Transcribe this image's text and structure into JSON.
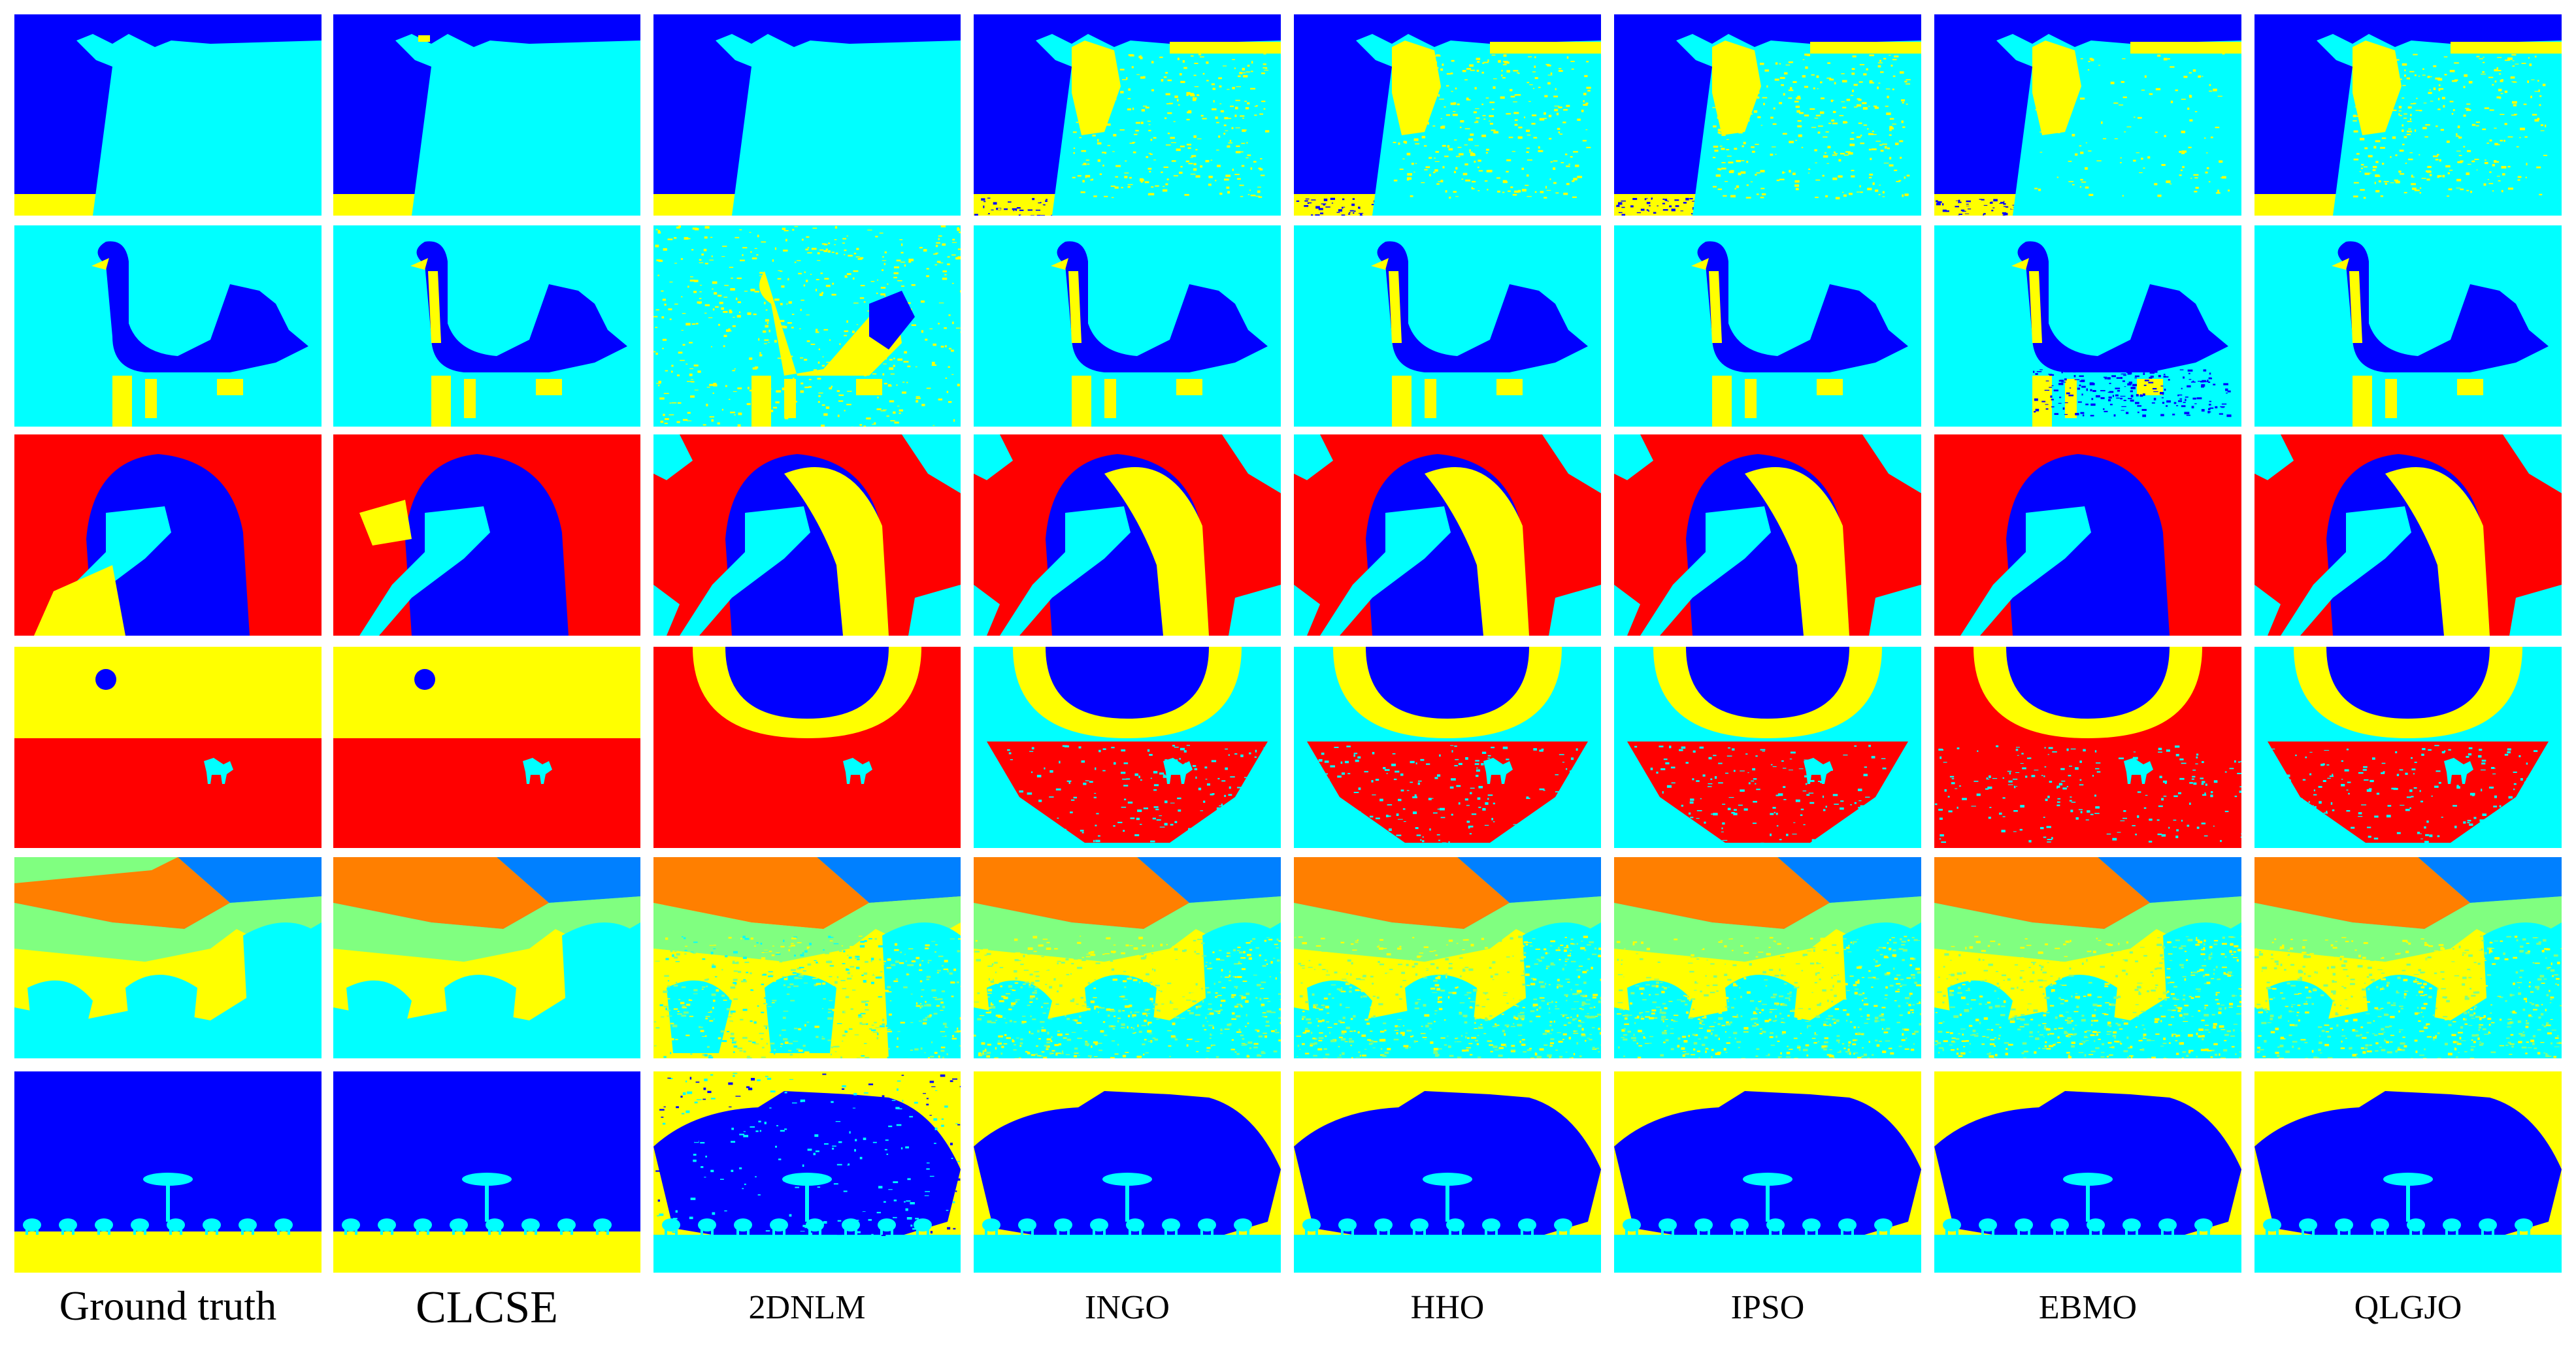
{
  "figure": {
    "columns": [
      {
        "id": "ground-truth",
        "label": "Ground truth"
      },
      {
        "id": "clcse",
        "label": "CLCSE"
      },
      {
        "id": "2dnlm",
        "label": "2DNLM"
      },
      {
        "id": "ingo",
        "label": "INGO"
      },
      {
        "id": "hho",
        "label": "HHO"
      },
      {
        "id": "ipso",
        "label": "IPSO"
      },
      {
        "id": "ebmo",
        "label": "EBMO"
      },
      {
        "id": "qlgjo",
        "label": "QLGJO"
      }
    ],
    "rows": [
      {
        "id": "cow",
        "subject": "cow"
      },
      {
        "id": "swan",
        "subject": "black swan on water"
      },
      {
        "id": "bird-head",
        "subject": "bird head"
      },
      {
        "id": "sunset-camel",
        "subject": "sun over desert with camel"
      },
      {
        "id": "mountain",
        "subject": "mountain landscape"
      },
      {
        "id": "savanna",
        "subject": "savanna tree with elephants"
      }
    ],
    "palette": {
      "blue": "#0000ff",
      "cyan": "#00ffff",
      "yellow": "#ffff00",
      "red": "#ff0000",
      "orange": "#ff7f00",
      "light-green": "#80ff80",
      "sky-blue": "#0080ff"
    }
  }
}
